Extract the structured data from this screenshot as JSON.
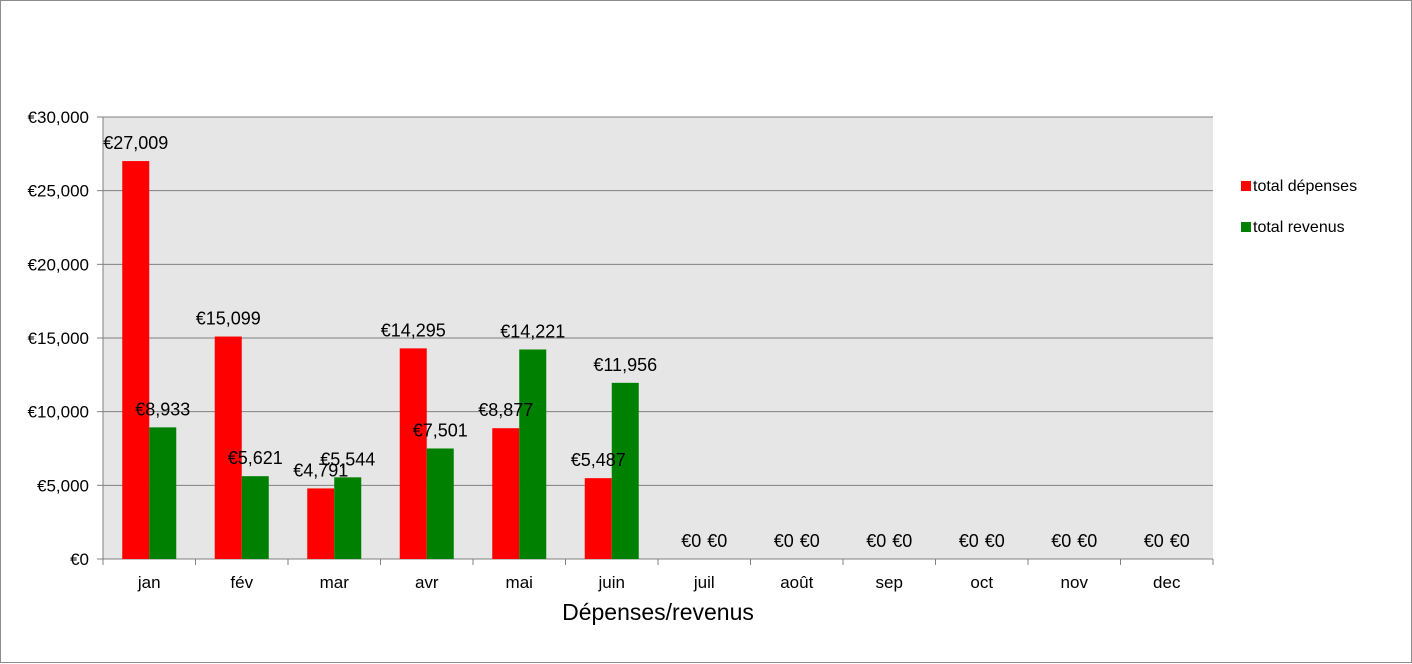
{
  "chart_data": {
    "type": "bar",
    "title": "",
    "xlabel": "Dépenses/revenus",
    "ylabel": "",
    "categories": [
      "jan",
      "fév",
      "mar",
      "avr",
      "mai",
      "juin",
      "juil",
      "août",
      "sep",
      "oct",
      "nov",
      "dec"
    ],
    "series": [
      {
        "name": "total dépenses",
        "color": "#ff0000",
        "values": [
          27009,
          15099,
          4791,
          14295,
          8877,
          5487,
          0,
          0,
          0,
          0,
          0,
          0
        ],
        "labels": [
          "€27,009",
          "€15,099",
          "€4,791",
          "€14,295",
          "€8,877",
          "€5,487",
          "€0",
          "€0",
          "€0",
          "€0",
          "€0",
          "€0"
        ]
      },
      {
        "name": "total revenus",
        "color": "#008000",
        "values": [
          8933,
          5621,
          5544,
          7501,
          14221,
          11956,
          0,
          0,
          0,
          0,
          0,
          0
        ],
        "labels": [
          "€8,933",
          "€5,621",
          "€5,544",
          "€7,501",
          "€14,221",
          "€11,956",
          "€0",
          "€0",
          "€0",
          "€0",
          "€0",
          "€0"
        ]
      }
    ],
    "ylim": [
      0,
      30000
    ],
    "yticks": [
      0,
      5000,
      10000,
      15000,
      20000,
      25000,
      30000
    ],
    "ytick_labels": [
      "€0",
      "€5,000",
      "€10,000",
      "€15,000",
      "€20,000",
      "€25,000",
      "€30,000"
    ],
    "grid": true,
    "plot_background": "#e6e6e6",
    "legend_position": "right"
  }
}
